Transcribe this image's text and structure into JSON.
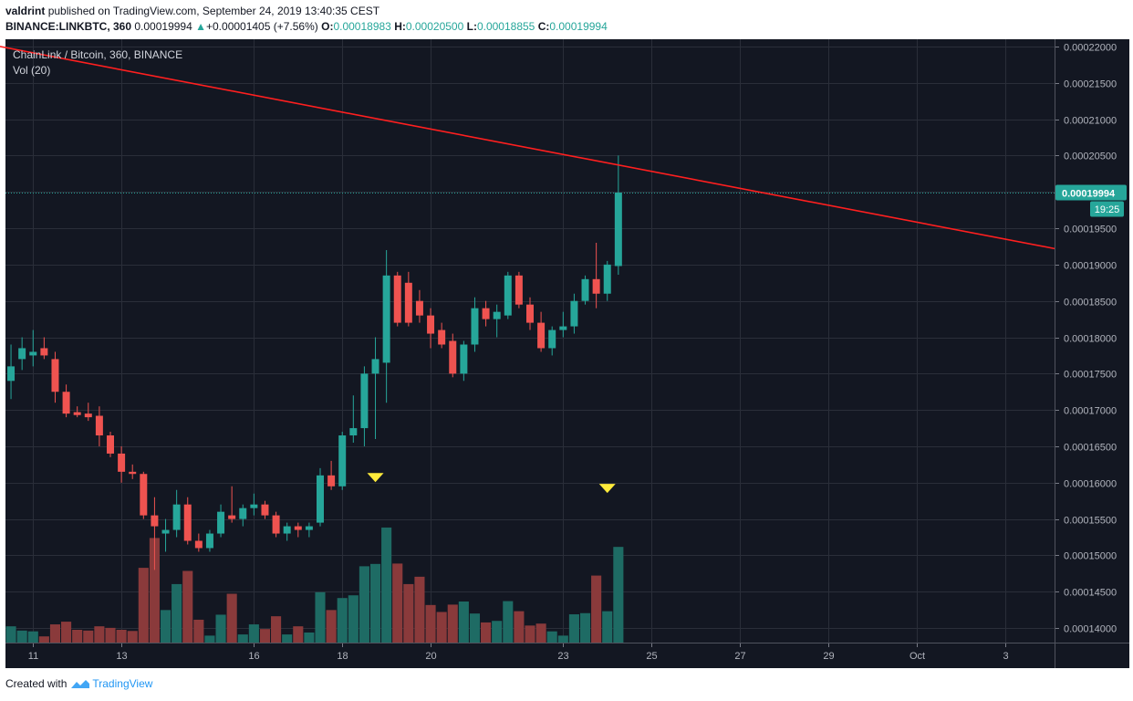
{
  "header": {
    "user": "valdrint",
    "published_text": "published on TradingView.com, September 24, 2019 13:40:35 CEST",
    "symbol": "BINANCE:LINKBTC, 360",
    "last_price": "0.00019994",
    "change": "+0.00001405 (+7.56%)",
    "ohlc": {
      "o_label": "O:",
      "o": "0.00018983",
      "h_label": "H:",
      "h": "0.00020500",
      "l_label": "L:",
      "l": "0.00018855",
      "c_label": "C:",
      "c": "0.00019994"
    }
  },
  "legend": {
    "title": "ChainLink / Bitcoin, 360, BINANCE",
    "volume": "Vol (20)"
  },
  "price_label": {
    "value": "0.00019994",
    "countdown": "19:25"
  },
  "footer": {
    "created_with": "Created with",
    "brand": "TradingView"
  },
  "colors": {
    "background": "#131722",
    "grid": "#2a2e39",
    "up": "#26a69a",
    "down": "#ef5350",
    "up_volume": "#1e6b64",
    "down_volume": "#8a3a3b",
    "trendline": "#ff1f1f",
    "marker": "#ffeb3b",
    "axis_text": "#b2b5be"
  },
  "chart_data": {
    "type": "candlestick",
    "symbol": "LINKBTC",
    "interval": "360",
    "exchange": "BINANCE",
    "ylim": [
      0.000138,
      0.000221
    ],
    "y_ticks": [
      "0.00022000",
      "0.00021500",
      "0.00021000",
      "0.00020500",
      "0.00020000",
      "0.00019500",
      "0.00019000",
      "0.00018500",
      "0.00018000",
      "0.00017500",
      "0.00017000",
      "0.00016500",
      "0.00016000",
      "0.00015500",
      "0.00015000",
      "0.00014500",
      "0.00014000"
    ],
    "x_ticks": [
      {
        "label": "11",
        "index": 3
      },
      {
        "label": "13",
        "index": 11
      },
      {
        "label": "16",
        "index": 23
      },
      {
        "label": "18",
        "index": 31
      },
      {
        "label": "20",
        "index": 39
      },
      {
        "label": "23",
        "index": 51
      },
      {
        "label": "25",
        "index": 59
      },
      {
        "label": "27",
        "index": 67
      },
      {
        "label": "29",
        "index": 75
      },
      {
        "label": "Oct",
        "index": 83
      },
      {
        "label": "3",
        "index": 91
      }
    ],
    "x_index_range": [
      0.5,
      95.5
    ],
    "grid": true,
    "volume_ylim": [
      0,
      4.1e-05
    ],
    "volume_axis": "none",
    "candles": [
      {
        "o": 0.000174,
        "h": 0.000179,
        "l": 0.0001715,
        "c": 0.000176,
        "v": 4.2e-06
      },
      {
        "o": 0.000177,
        "h": 0.00018,
        "l": 0.0001755,
        "c": 0.0001785,
        "v": 3.1e-06
      },
      {
        "o": 0.0001775,
        "h": 0.000181,
        "l": 0.000176,
        "c": 0.000178,
        "v": 2.9e-06
      },
      {
        "o": 0.0001785,
        "h": 0.00018,
        "l": 0.000177,
        "c": 0.0001775,
        "v": 1.6e-06
      },
      {
        "o": 0.000177,
        "h": 0.000178,
        "l": 0.000171,
        "c": 0.0001725,
        "v": 4.7e-06
      },
      {
        "o": 0.0001725,
        "h": 0.0001735,
        "l": 0.000169,
        "c": 0.0001695,
        "v": 5.4e-06
      },
      {
        "o": 0.0001697,
        "h": 0.0001705,
        "l": 0.000169,
        "c": 0.0001693,
        "v": 3.3e-06
      },
      {
        "o": 0.0001695,
        "h": 0.000171,
        "l": 0.0001685,
        "c": 0.000169,
        "v": 3.1e-06
      },
      {
        "o": 0.0001692,
        "h": 0.0001705,
        "l": 0.000165,
        "c": 0.0001665,
        "v": 4.2e-06
      },
      {
        "o": 0.0001665,
        "h": 0.000167,
        "l": 0.0001635,
        "c": 0.000164,
        "v": 3.8e-06
      },
      {
        "o": 0.000164,
        "h": 0.000165,
        "l": 0.00016,
        "c": 0.0001615,
        "v": 3.3e-06
      },
      {
        "o": 0.0001615,
        "h": 0.0001625,
        "l": 0.0001605,
        "c": 0.0001612,
        "v": 3e-06
      },
      {
        "o": 0.0001612,
        "h": 0.0001615,
        "l": 0.000155,
        "c": 0.0001555,
        "v": 1.93e-05
      },
      {
        "o": 0.0001555,
        "h": 0.000158,
        "l": 0.000148,
        "c": 0.000154,
        "v": 2.7e-05
      },
      {
        "o": 0.000153,
        "h": 0.000155,
        "l": 0.0001505,
        "c": 0.0001535,
        "v": 8.4e-06
      },
      {
        "o": 0.0001535,
        "h": 0.000159,
        "l": 0.0001525,
        "c": 0.000157,
        "v": 1.51e-05
      },
      {
        "o": 0.000157,
        "h": 0.000158,
        "l": 0.0001515,
        "c": 0.000152,
        "v": 1.85e-05
      },
      {
        "o": 0.000152,
        "h": 0.000153,
        "l": 0.0001505,
        "c": 0.000151,
        "v": 5.9e-06
      },
      {
        "o": 0.000151,
        "h": 0.0001535,
        "l": 0.0001505,
        "c": 0.000153,
        "v": 1.8e-06
      },
      {
        "o": 0.000153,
        "h": 0.000157,
        "l": 0.0001525,
        "c": 0.000156,
        "v": 7.2e-06
      },
      {
        "o": 0.0001555,
        "h": 0.0001595,
        "l": 0.0001545,
        "c": 0.000155,
        "v": 1.26e-05
      },
      {
        "o": 0.000155,
        "h": 0.000157,
        "l": 0.000154,
        "c": 0.0001565,
        "v": 2.1e-06
      },
      {
        "o": 0.0001565,
        "h": 0.0001585,
        "l": 0.0001555,
        "c": 0.000157,
        "v": 4.7e-06
      },
      {
        "o": 0.000157,
        "h": 0.0001575,
        "l": 0.000155,
        "c": 0.0001555,
        "v": 3.5e-06
      },
      {
        "o": 0.0001555,
        "h": 0.000156,
        "l": 0.0001525,
        "c": 0.000153,
        "v": 6.8e-06
      },
      {
        "o": 0.000153,
        "h": 0.0001545,
        "l": 0.000152,
        "c": 0.000154,
        "v": 2.1e-06
      },
      {
        "o": 0.000154,
        "h": 0.0001545,
        "l": 0.0001525,
        "c": 0.0001535,
        "v": 4.2e-06
      },
      {
        "o": 0.0001535,
        "h": 0.0001545,
        "l": 0.0001525,
        "c": 0.000154,
        "v": 2.6e-06
      },
      {
        "o": 0.0001545,
        "h": 0.000162,
        "l": 0.000154,
        "c": 0.000161,
        "v": 1.3e-05
      },
      {
        "o": 0.000161,
        "h": 0.000163,
        "l": 0.000159,
        "c": 0.0001595,
        "v": 8.4e-06
      },
      {
        "o": 0.0001595,
        "h": 0.000167,
        "l": 0.000159,
        "c": 0.0001665,
        "v": 1.15e-05
      },
      {
        "o": 0.0001665,
        "h": 0.000172,
        "l": 0.0001655,
        "c": 0.0001675,
        "v": 1.22e-05
      },
      {
        "o": 0.0001675,
        "h": 0.000176,
        "l": 0.000165,
        "c": 0.000175,
        "v": 1.97e-05
      },
      {
        "o": 0.000175,
        "h": 0.00018,
        "l": 0.000166,
        "c": 0.000177,
        "v": 2.03e-05
      },
      {
        "o": 0.0001765,
        "h": 0.000192,
        "l": 0.000171,
        "c": 0.0001885,
        "v": 2.97e-05
      },
      {
        "o": 0.0001885,
        "h": 0.000189,
        "l": 0.0001815,
        "c": 0.000182,
        "v": 2.04e-05
      },
      {
        "o": 0.0001875,
        "h": 0.000189,
        "l": 0.0001815,
        "c": 0.000182,
        "v": 1.51e-05
      },
      {
        "o": 0.000185,
        "h": 0.0001865,
        "l": 0.000182,
        "c": 0.000183,
        "v": 1.7e-05
      },
      {
        "o": 0.000183,
        "h": 0.000184,
        "l": 0.0001785,
        "c": 0.0001805,
        "v": 9.7e-06
      },
      {
        "o": 0.000181,
        "h": 0.000182,
        "l": 0.0001785,
        "c": 0.000179,
        "v": 7.9e-06
      },
      {
        "o": 0.0001795,
        "h": 0.0001805,
        "l": 0.0001745,
        "c": 0.000175,
        "v": 9.8e-06
      },
      {
        "o": 0.000175,
        "h": 0.0001795,
        "l": 0.000174,
        "c": 0.000179,
        "v": 1.06e-05
      },
      {
        "o": 0.000179,
        "h": 0.0001855,
        "l": 0.000178,
        "c": 0.000184,
        "v": 7.5e-06
      },
      {
        "o": 0.000184,
        "h": 0.000185,
        "l": 0.0001815,
        "c": 0.0001825,
        "v": 5.2e-06
      },
      {
        "o": 0.0001825,
        "h": 0.0001845,
        "l": 0.00018,
        "c": 0.0001835,
        "v": 5.6e-06
      },
      {
        "o": 0.000183,
        "h": 0.000189,
        "l": 0.0001825,
        "c": 0.0001885,
        "v": 1.07e-05
      },
      {
        "o": 0.0001885,
        "h": 0.000189,
        "l": 0.000184,
        "c": 0.0001845,
        "v": 8.1e-06
      },
      {
        "o": 0.0001845,
        "h": 0.0001855,
        "l": 0.000181,
        "c": 0.000182,
        "v": 4.4e-06
      },
      {
        "o": 0.000182,
        "h": 0.0001835,
        "l": 0.000178,
        "c": 0.0001785,
        "v": 4.9e-06
      },
      {
        "o": 0.0001785,
        "h": 0.0001815,
        "l": 0.0001775,
        "c": 0.000181,
        "v": 2.9e-06
      },
      {
        "o": 0.000181,
        "h": 0.0001835,
        "l": 0.00018,
        "c": 0.0001815,
        "v": 1.8e-06
      },
      {
        "o": 0.0001815,
        "h": 0.000186,
        "l": 0.0001805,
        "c": 0.000185,
        "v": 7.3e-06
      },
      {
        "o": 0.000185,
        "h": 0.0001885,
        "l": 0.0001845,
        "c": 0.000188,
        "v": 7.6e-06
      },
      {
        "o": 0.000188,
        "h": 0.000193,
        "l": 0.000184,
        "c": 0.000186,
        "v": 1.73e-05
      },
      {
        "o": 0.000186,
        "h": 0.0001905,
        "l": 0.000185,
        "c": 0.00019,
        "v": 8.1e-06
      },
      {
        "o": 0.0001898,
        "h": 0.000205,
        "l": 0.0001886,
        "c": 0.0001999,
        "v": 2.47e-05
      }
    ],
    "trendline": {
      "x1": 0,
      "y1": 0.00022,
      "x2": 95.5,
      "y2": 0.0001922
    },
    "last_price_line": 0.00019994,
    "markers": [
      {
        "index": 34,
        "shape": "triangle-down",
        "price": 0.0001607
      },
      {
        "index": 55,
        "shape": "triangle-down",
        "price": 0.0001592
      }
    ]
  }
}
